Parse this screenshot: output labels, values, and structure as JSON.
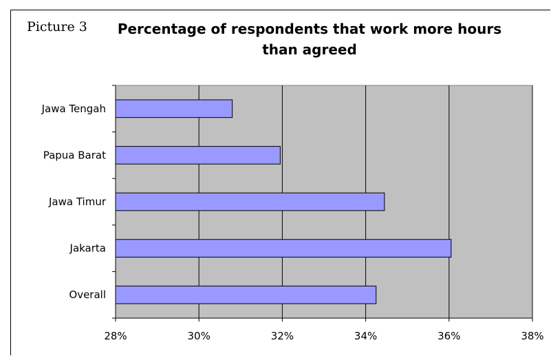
{
  "caption": "Picture 3",
  "chart_data": {
    "type": "bar",
    "orientation": "horizontal",
    "title": "Percentage of respondents that work more hours than agreed",
    "title_lines": [
      "Percentage of respondents that work more hours",
      "than agreed"
    ],
    "categories": [
      "Jawa Tengah",
      "Papua Barat",
      "Jawa Timur",
      "Jakarta",
      "Overall"
    ],
    "values": [
      30.8,
      31.95,
      34.45,
      36.05,
      34.25
    ],
    "xlim": [
      28,
      38
    ],
    "x_ticks": [
      28,
      30,
      32,
      34,
      36,
      38
    ],
    "x_tick_labels": [
      "28%",
      "30%",
      "32%",
      "34%",
      "36%",
      "38%"
    ],
    "xlabel": "",
    "ylabel": "",
    "grid": true,
    "legend": "none",
    "colors": {
      "bar_fill": "#9999ff",
      "bar_stroke": "#000000",
      "plot_background": "#c0c0c0",
      "gridline": "#000000"
    }
  }
}
